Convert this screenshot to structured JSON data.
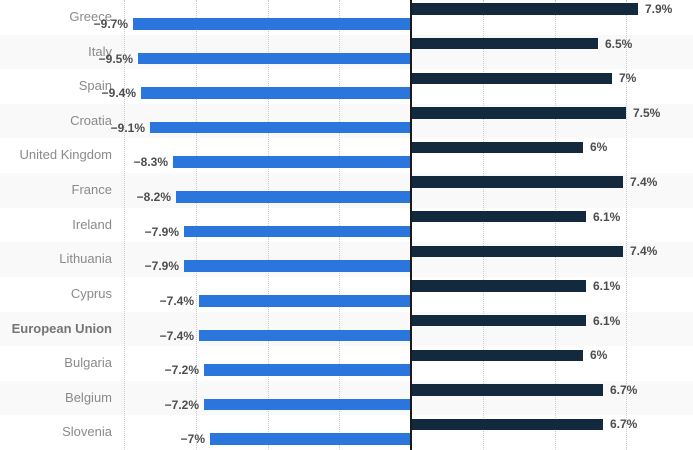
{
  "chart_data": {
    "type": "bar",
    "orientation": "horizontal-diverging",
    "title": "",
    "categories": [
      "Greece",
      "Italy",
      "Spain",
      "Croatia",
      "United Kingdom",
      "France",
      "Ireland",
      "Lithuania",
      "Cyprus",
      "European Union",
      "Bulgaria",
      "Belgium",
      "Slovenia"
    ],
    "bold_categories": [
      "European Union"
    ],
    "series": [
      {
        "name": "negative-blue-series",
        "color": "#2b76dc",
        "values": [
          -9.7,
          -9.5,
          -9.4,
          -9.1,
          -8.3,
          -8.2,
          -7.9,
          -7.9,
          -7.4,
          -7.4,
          -7.2,
          -7.2,
          -7.0
        ],
        "labels": [
          "−9.7%",
          "−9.5%",
          "−9.4%",
          "−9.1%",
          "−8.3%",
          "−8.2%",
          "−7.9%",
          "−7.9%",
          "−7.4%",
          "−7.4%",
          "−7.2%",
          "−7.2%",
          "−7%"
        ]
      },
      {
        "name": "positive-navy-series",
        "color": "#12293e",
        "values": [
          7.9,
          6.5,
          7.0,
          7.5,
          6.0,
          7.4,
          6.1,
          7.4,
          6.1,
          6.1,
          6.0,
          6.7,
          6.7
        ],
        "labels": [
          "7.9%",
          "6.5%",
          "7%",
          "7.5%",
          "6%",
          "7.4%",
          "6.1%",
          "7.4%",
          "6.1%",
          "6.1%",
          "6%",
          "6.7%",
          "6.7%"
        ]
      }
    ],
    "xlim": [
      -14.3,
      9.8
    ],
    "gridline_step_percent": 2.5,
    "grid": true,
    "legend_position": "none-visible",
    "alt_row_background": "#f9f9f9",
    "zero_axis_color": "#1a1a1a",
    "gridline_color": "#c9c9c9"
  }
}
